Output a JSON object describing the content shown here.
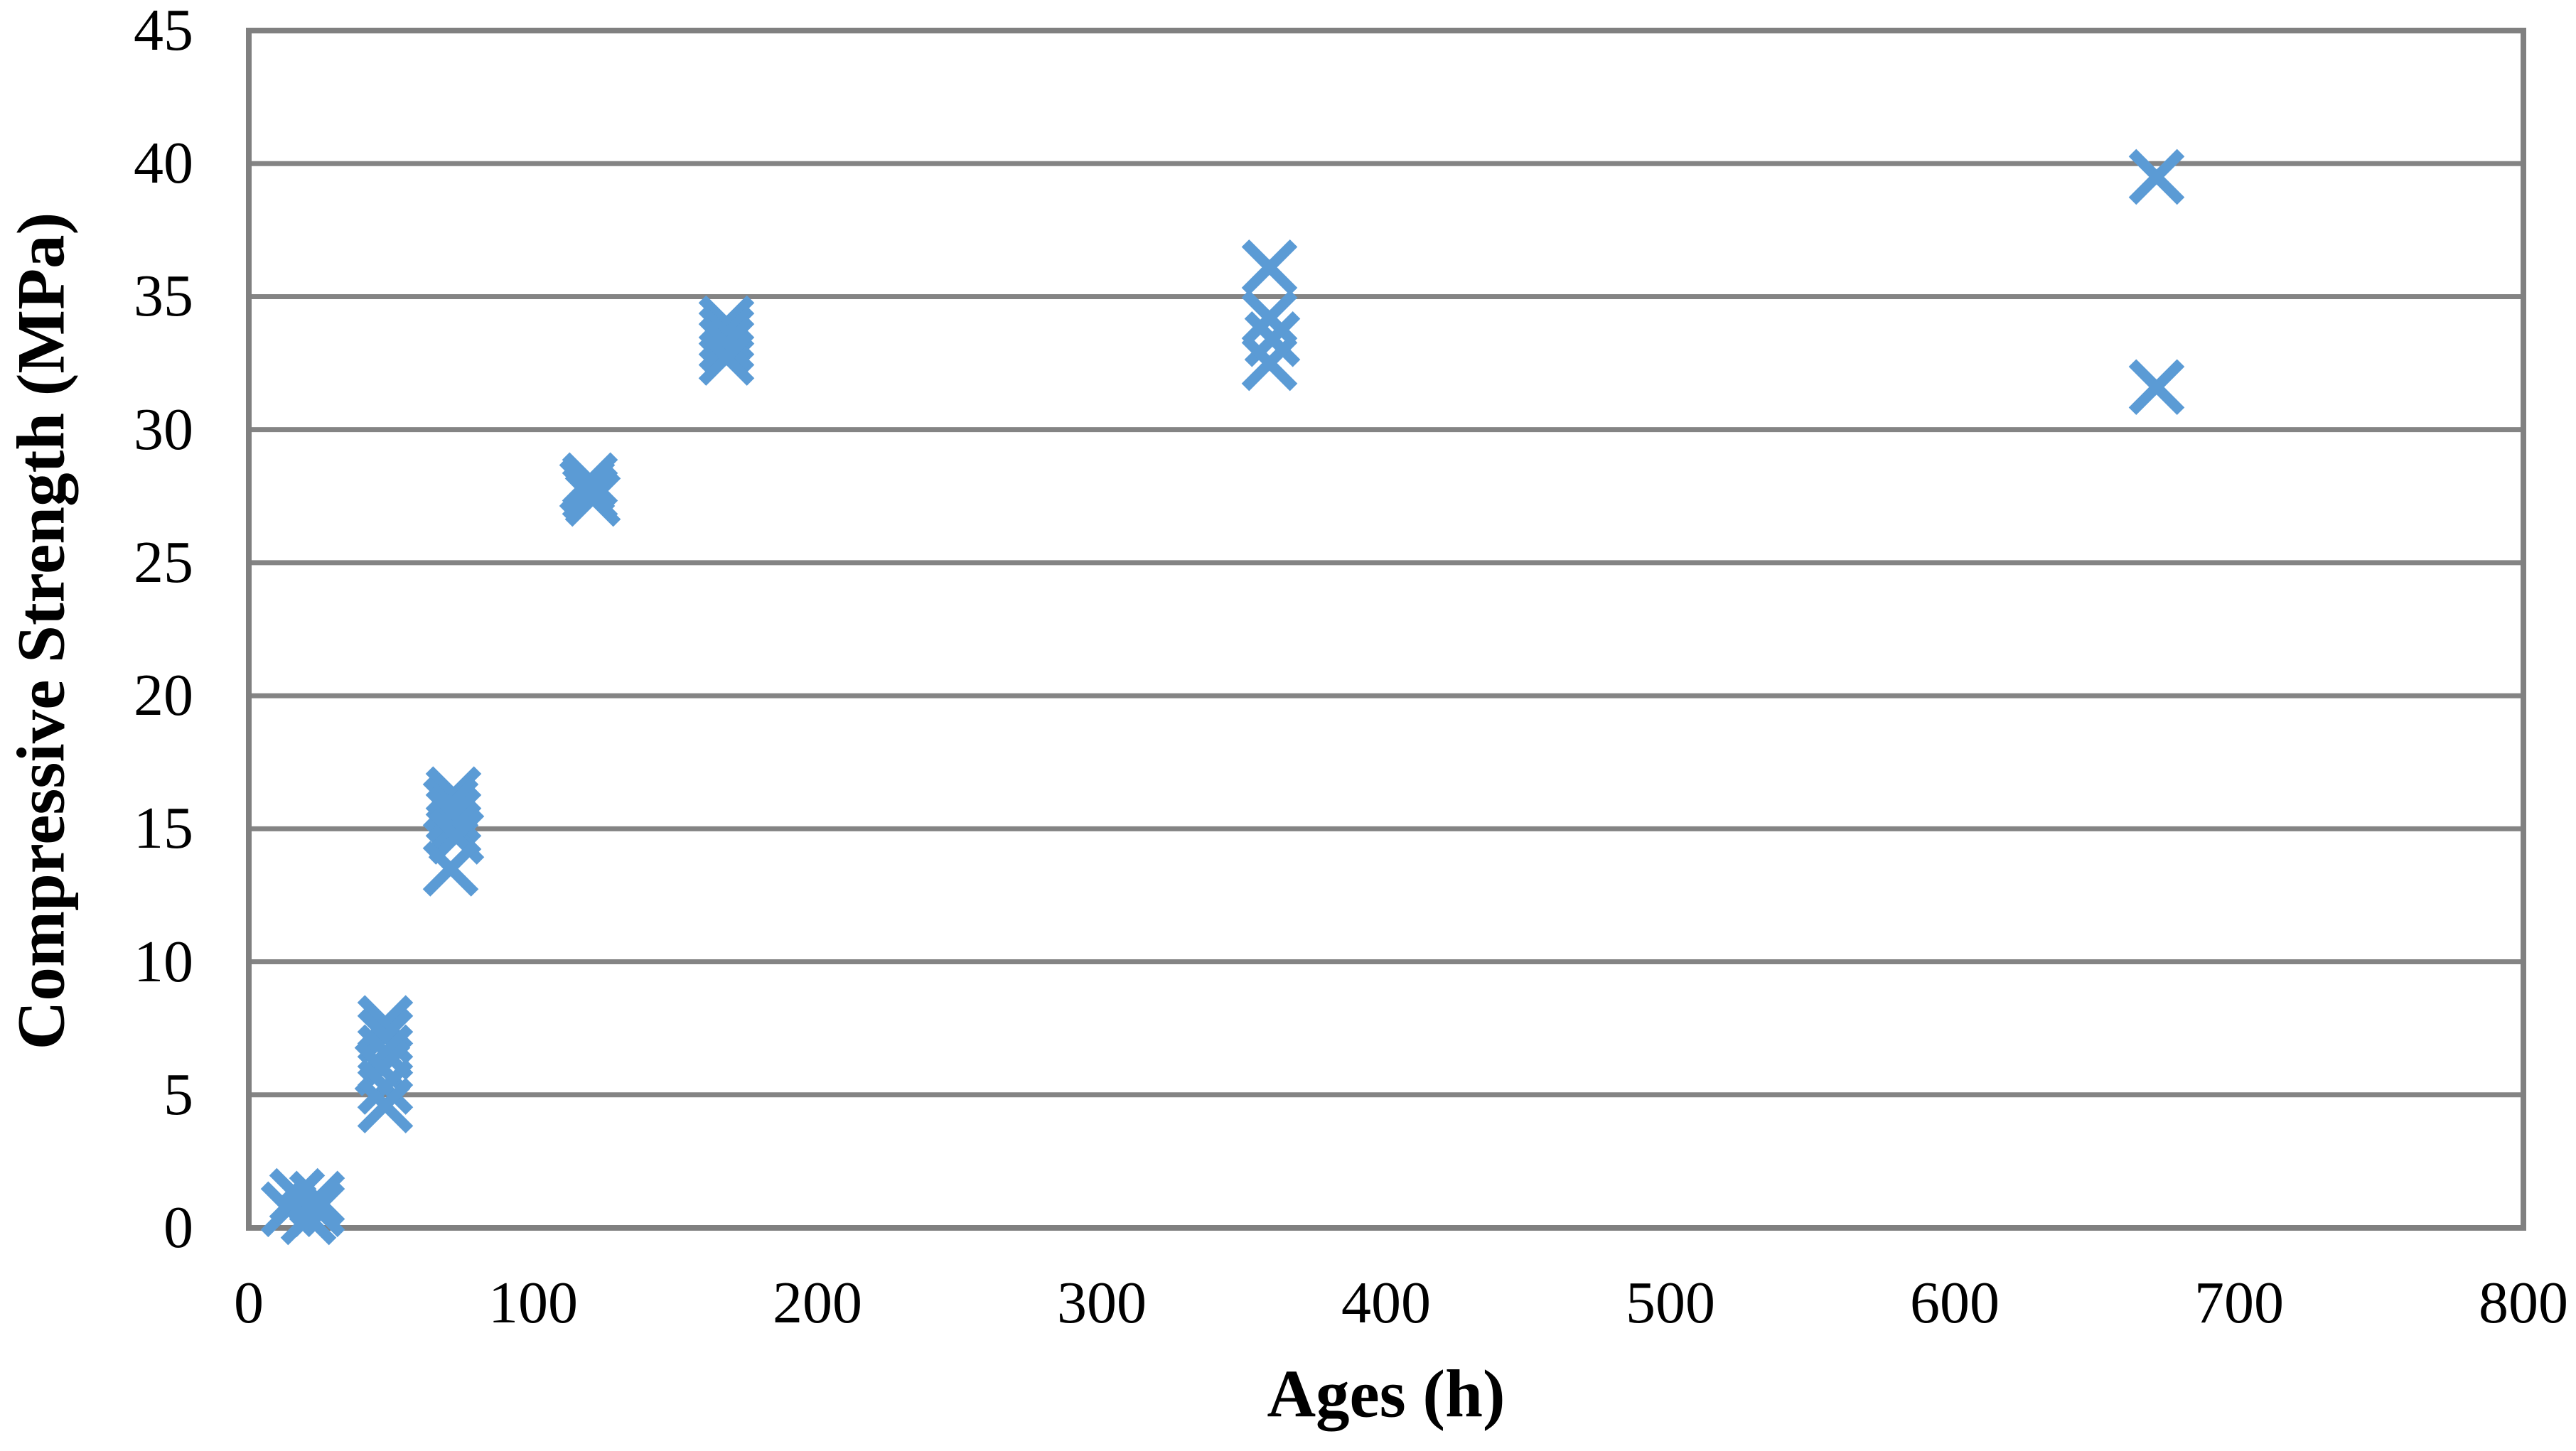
{
  "chart_data": {
    "type": "scatter",
    "title": "",
    "xlabel": "Ages (h)",
    "ylabel": "Compressive Strength (MPa)",
    "xlim": [
      0,
      800
    ],
    "ylim": [
      0,
      45
    ],
    "x_ticks": [
      0,
      100,
      200,
      300,
      400,
      500,
      600,
      700,
      800
    ],
    "y_ticks": [
      0,
      5,
      10,
      15,
      20,
      25,
      30,
      35,
      40,
      45
    ],
    "grid": "horizontal-only",
    "legend_position": "none",
    "marker": {
      "shape": "x",
      "color": "#5B9BD5",
      "size": 68,
      "stroke": 15
    },
    "axis_color": "#808080",
    "grid_color": "#848484",
    "text_color": "#000000",
    "background_color": "#ffffff",
    "series": [
      {
        "name": "Compressive Strength",
        "points": [
          {
            "x": 14,
            "y": 0.7
          },
          {
            "x": 17,
            "y": 1.2
          },
          {
            "x": 21,
            "y": 0.4
          },
          {
            "x": 24,
            "y": 1.1
          },
          {
            "x": 24,
            "y": 0.7
          },
          {
            "x": 48,
            "y": 7.7
          },
          {
            "x": 48,
            "y": 7.2
          },
          {
            "x": 48,
            "y": 6.6
          },
          {
            "x": 47,
            "y": 6.0
          },
          {
            "x": 48,
            "y": 5.3
          },
          {
            "x": 48,
            "y": 4.6
          },
          {
            "x": 72,
            "y": 16.3
          },
          {
            "x": 71,
            "y": 15.9
          },
          {
            "x": 72,
            "y": 15.5
          },
          {
            "x": 72,
            "y": 15.0
          },
          {
            "x": 73,
            "y": 14.7
          },
          {
            "x": 71,
            "y": 13.5
          },
          {
            "x": 120,
            "y": 28.1
          },
          {
            "x": 119,
            "y": 27.9
          },
          {
            "x": 120,
            "y": 27.6
          },
          {
            "x": 121,
            "y": 27.4
          },
          {
            "x": 168,
            "y": 34.0
          },
          {
            "x": 168,
            "y": 33.6
          },
          {
            "x": 168,
            "y": 33.2
          },
          {
            "x": 168,
            "y": 32.7
          },
          {
            "x": 359,
            "y": 36.1
          },
          {
            "x": 359,
            "y": 34.2
          },
          {
            "x": 360,
            "y": 33.4
          },
          {
            "x": 359,
            "y": 32.5
          },
          {
            "x": 671,
            "y": 39.5
          },
          {
            "x": 671,
            "y": 31.6
          }
        ]
      }
    ]
  }
}
